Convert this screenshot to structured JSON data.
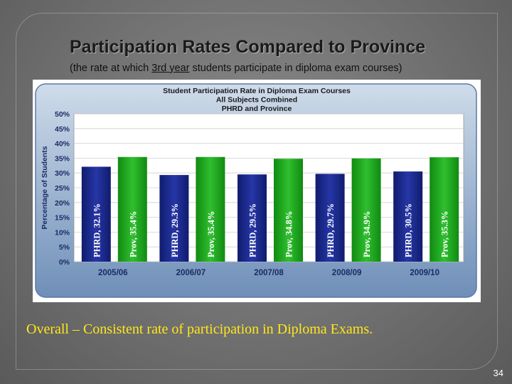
{
  "slide": {
    "title": "Participation Rates Compared to Province",
    "subtitle_pre": "(the rate at which ",
    "subtitle_underlined": "3rd year",
    "subtitle_post": " students participate in diploma exam courses)",
    "caption": "Overall – Consistent rate of participation in Diploma Exams.",
    "page_number": "34"
  },
  "chart_data": {
    "type": "bar",
    "title_lines": [
      "Student Participation Rate in Diploma Exam Courses",
      "All Subjects Combined",
      "PHRD and Province"
    ],
    "ylabel": "Percentage of Students",
    "categories": [
      "2005/06",
      "2006/07",
      "2007/08",
      "2008/09",
      "2009/10"
    ],
    "ylim": [
      0,
      50
    ],
    "yticks": [
      "0%",
      "5%",
      "10%",
      "15%",
      "20%",
      "25%",
      "30%",
      "35%",
      "40%",
      "45%",
      "50%"
    ],
    "grid": true,
    "series": [
      {
        "name": "PHRD",
        "values": [
          32.1,
          29.3,
          29.5,
          29.7,
          30.5
        ],
        "labels": [
          "PHRD, 32.1%",
          "PHRD, 29.3%",
          "PHRD, 29.5%",
          "PHRD, 29.7%",
          "PHRD, 30.5%"
        ],
        "color": "#1c2a8c"
      },
      {
        "name": "Prov",
        "values": [
          35.4,
          35.4,
          34.8,
          34.9,
          35.3
        ],
        "labels": [
          "Prov, 35.4%",
          "Prov, 35.4%",
          "Prov, 34.8%",
          "Prov, 34.9%",
          "Prov, 35.3%"
        ],
        "color": "#23a323"
      }
    ]
  }
}
